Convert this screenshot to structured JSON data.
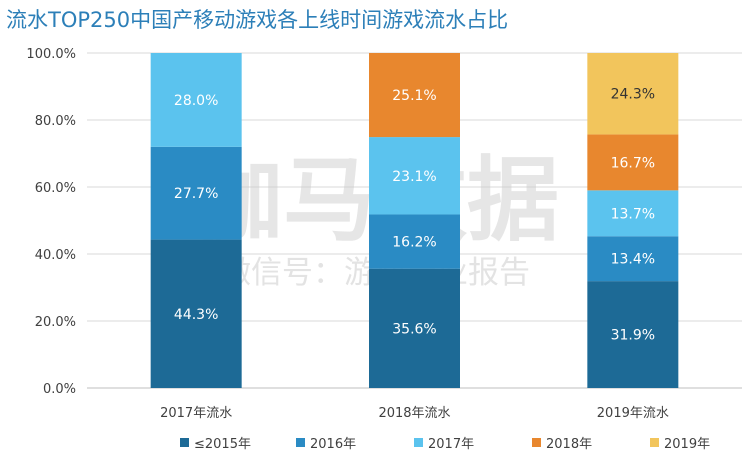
{
  "chart_data": {
    "type": "bar",
    "stacked": true,
    "title": "流水TOP250中国产移动游戏各上线时间游戏流水占比",
    "categories": [
      "2017年流水",
      "2018年流水",
      "2019年流水"
    ],
    "series": [
      {
        "name": "≤2015年",
        "color": "#1d6a96",
        "values": [
          44.3,
          35.6,
          31.9
        ],
        "labels": [
          "44.3%",
          "35.6%",
          "31.9%"
        ]
      },
      {
        "name": "2016年",
        "color": "#2a8bc4",
        "values": [
          27.7,
          16.2,
          13.4
        ],
        "labels": [
          "27.7%",
          "16.2%",
          "13.4%"
        ]
      },
      {
        "name": "2017年",
        "color": "#5bc3ee",
        "values": [
          28.0,
          23.1,
          13.7
        ],
        "labels": [
          "28.0%",
          "23.1%",
          "13.7%"
        ]
      },
      {
        "name": "2018年",
        "color": "#e8872e",
        "values": [
          0,
          25.1,
          16.7
        ],
        "labels": [
          "",
          "25.1%",
          "16.7%"
        ]
      },
      {
        "name": "2019年",
        "color": "#f2c55c",
        "values": [
          0,
          0,
          24.3
        ],
        "labels": [
          "",
          "",
          "24.3%"
        ]
      }
    ],
    "ylim": [
      0,
      100
    ],
    "yticks": [
      "0.0%",
      "20.0%",
      "40.0%",
      "60.0%",
      "80.0%",
      "100.0%"
    ],
    "legend": "bottom",
    "grid": true
  },
  "watermark": {
    "main": "伽马数据",
    "sub": "微信号：游戏产业报告"
  }
}
